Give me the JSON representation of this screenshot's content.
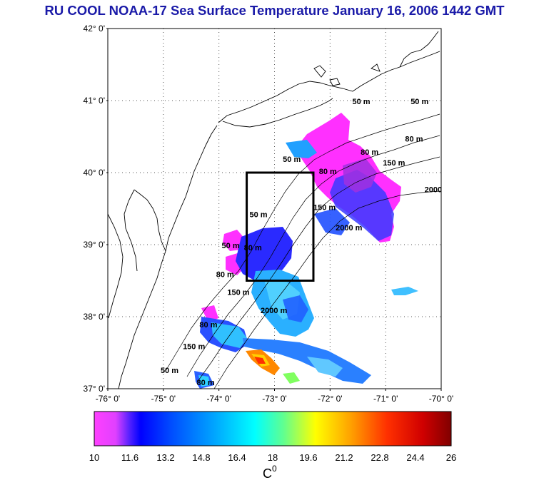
{
  "title": "RU COOL  NOAA-17 Sea Surface Temperature January 16, 2006 1442 GMT",
  "map": {
    "lon_range": [
      -76,
      -70
    ],
    "lat_range": [
      37,
      42
    ],
    "lat_labels": [
      "42° 0'",
      "41° 0'",
      "40° 0'",
      "39° 0'",
      "38° 0'",
      "37° 0'"
    ],
    "lon_labels": [
      "-76° 0'",
      "-75° 0'",
      "-74° 0'",
      "-73° 0'",
      "-72° 0'",
      "-71° 0'",
      "-70° 0'"
    ],
    "study_box": {
      "lon_min": -73.5,
      "lon_max": -72.3,
      "lat_min": 38.5,
      "lat_max": 40.0
    },
    "contour_labels": [
      {
        "text": "50 m",
        "lon": -71.6,
        "lat": 40.95
      },
      {
        "text": "50 m",
        "lon": -70.55,
        "lat": 40.95
      },
      {
        "text": "80 m",
        "lon": -70.65,
        "lat": 40.43
      },
      {
        "text": "80 m",
        "lon": -71.45,
        "lat": 40.25
      },
      {
        "text": "150 m",
        "lon": -71.05,
        "lat": 40.1
      },
      {
        "text": "2000",
        "lon": -70.3,
        "lat": 39.73
      },
      {
        "text": "50 m",
        "lon": -72.85,
        "lat": 40.15
      },
      {
        "text": "80 m",
        "lon": -72.2,
        "lat": 39.98
      },
      {
        "text": "150 m",
        "lon": -72.3,
        "lat": 39.48
      },
      {
        "text": "2000 m",
        "lon": -71.9,
        "lat": 39.2
      },
      {
        "text": "50 m",
        "lon": -73.45,
        "lat": 39.38
      },
      {
        "text": "50 m",
        "lon": -73.95,
        "lat": 38.95
      },
      {
        "text": "80 m",
        "lon": -73.55,
        "lat": 38.92
      },
      {
        "text": "80 m",
        "lon": -74.05,
        "lat": 38.55
      },
      {
        "text": "150 m",
        "lon": -73.85,
        "lat": 38.3
      },
      {
        "text": "2000 m",
        "lon": -73.25,
        "lat": 38.05
      },
      {
        "text": "80 m",
        "lon": -74.35,
        "lat": 37.85
      },
      {
        "text": "150 m",
        "lon": -74.65,
        "lat": 37.55
      },
      {
        "text": "50 m",
        "lon": -75.05,
        "lat": 37.22
      },
      {
        "text": "80 m",
        "lon": -74.4,
        "lat": 37.05
      }
    ]
  },
  "colorbar": {
    "min": 10,
    "max": 26,
    "tick_labels": [
      "10",
      "11.6",
      "13.2",
      "14.8",
      "16.4",
      "18",
      "19.6",
      "21.2",
      "22.8",
      "24.4",
      "26"
    ],
    "unit_label": "C",
    "unit_superscript": "0",
    "colors": [
      "#ff40ff",
      "#c030ff",
      "#0000ff",
      "#0060ff",
      "#00b0ff",
      "#00ffff",
      "#80ff80",
      "#ffff00",
      "#ff9900",
      "#ff3300",
      "#cc0000",
      "#800000"
    ]
  },
  "colors": {
    "title": "#1a1aa8",
    "box": "#000000"
  }
}
